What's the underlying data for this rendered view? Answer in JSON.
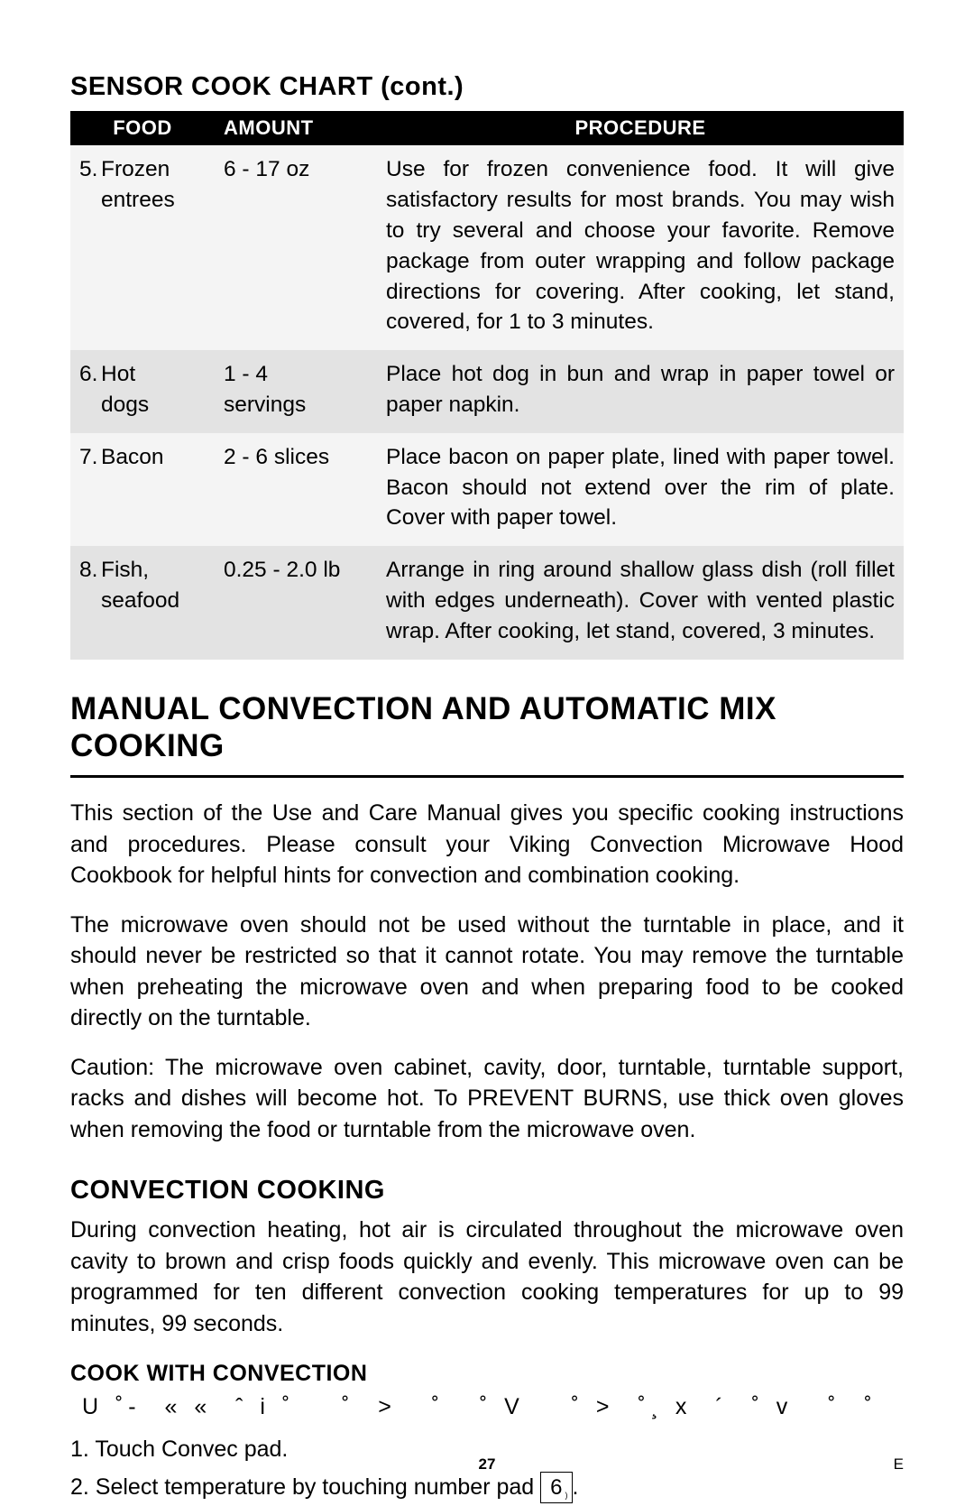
{
  "section_title": "SENSOR COOK CHART (cont.)",
  "table": {
    "headers": {
      "food": "FOOD",
      "amount": "AMOUNT",
      "procedure": "PROCEDURE"
    },
    "rows": [
      {
        "num": "5.",
        "food": "Frozen entrees",
        "amount": "6 - 17 oz",
        "procedure": "Use for frozen convenience food. It will give satisfactory results for most brands. You may wish to try several and choose your favorite. Remove package from outer wrapping and follow package directions for covering. After cooking, let stand, covered, for 1 to 3 minutes.",
        "shade": "light"
      },
      {
        "num": "6.",
        "food": "Hot dogs",
        "amount": "1 - 4 servings",
        "procedure": "Place hot dog in bun and wrap in paper towel or paper napkin.",
        "shade": "dark"
      },
      {
        "num": "7.",
        "food": "Bacon",
        "amount": "2 - 6 slices",
        "procedure": "Place bacon on paper plate, lined with paper towel. Bacon should not extend over the rim of plate. Cover with paper towel.",
        "shade": "light"
      },
      {
        "num": "8.",
        "food": "Fish, seafood",
        "amount": "0.25 - 2.0 lb",
        "procedure": "Arrange in ring around shallow glass dish (roll fillet with edges underneath). Cover with vented plastic wrap. After cooking, let stand, covered, 3 minutes.",
        "shade": "dark"
      }
    ]
  },
  "main_heading": "MANUAL CONVECTION AND AUTOMATIC MIX COOKING",
  "para1": "This section of the Use and Care Manual gives you specific cooking instructions and procedures. Please consult your Viking Convection Microwave Hood Cookbook for helpful hints for convection and combination cooking.",
  "para2": "The microwave oven should not be used without the turntable in place, and it should never be restricted so that it cannot rotate. You may remove the turntable when preheating the microwave oven and when preparing food to be cooked directly on the turntable.",
  "caution_label": "Caution:",
  "caution_body": " The microwave oven cabinet, cavity, door, turntable, turntable support, racks and dishes will become hot. To PREVENT BURNS, use thick oven gloves when removing the food or turntable from the microwave oven.",
  "conv_title": "CONVECTION COOKING",
  "conv_para": "During convection heating, hot air is circulated throughout the microwave oven cavity to brown and crisp foods quickly and evenly. This microwave oven can be programmed for ten different convection cooking temperatures for up to 99 minutes, 99 seconds.",
  "cook_with_conv": "COOK WITH CONVECTION",
  "garbled_line": " U ˚-  « «  ˆ i ˚    ˚  >   ˚   ˚ V    ˚ >  ˚¸ x  ´  ˚ v   ˚  ˚      i ˆ",
  "step1": "1. Touch Convec pad.",
  "step2_pre": "2. Select temperature by touching number pad ",
  "step2_key": "6",
  "step2_key_sub": ")",
  "step2_post": ".",
  "page_number": "27",
  "footer_e": "E"
}
